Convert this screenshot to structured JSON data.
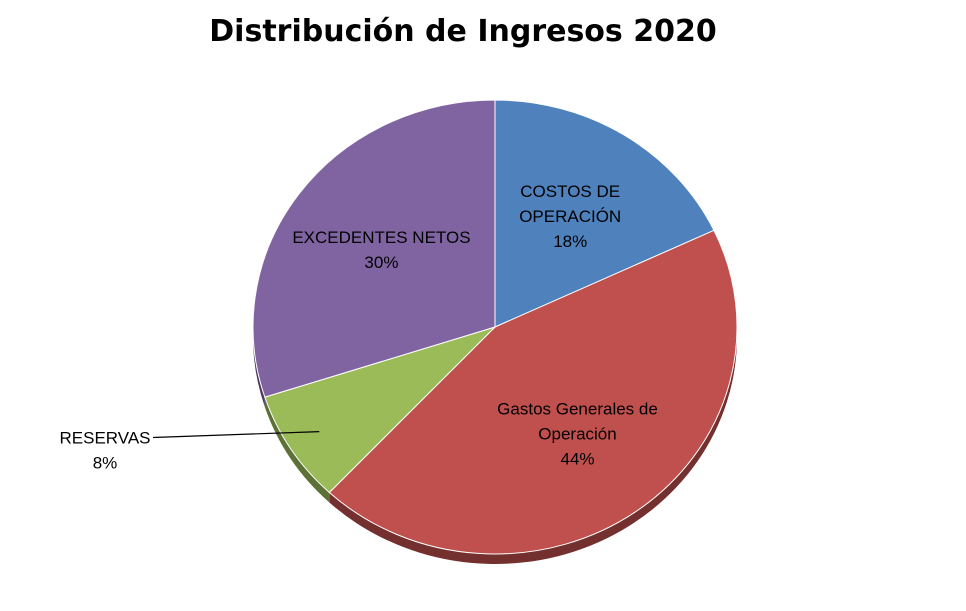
{
  "chart_data": {
    "type": "pie",
    "title": "Distribución de Ingresos 2020",
    "slices": [
      {
        "label": [
          "COSTOS DE",
          "OPERACIÓN"
        ],
        "percent_label": "18%",
        "value": 18,
        "color": "#4F81BD"
      },
      {
        "label": [
          "Gastos Generales de",
          "Operación"
        ],
        "percent_label": "44%",
        "value": 44,
        "color": "#C0504D"
      },
      {
        "label": [
          "RESERVAS"
        ],
        "percent_label": "8%",
        "value": 8,
        "color": "#9BBB59"
      },
      {
        "label": [
          "EXCEDENTES NETOS"
        ],
        "percent_label": "30%",
        "value": 30,
        "color": "#8064A2"
      }
    ]
  }
}
